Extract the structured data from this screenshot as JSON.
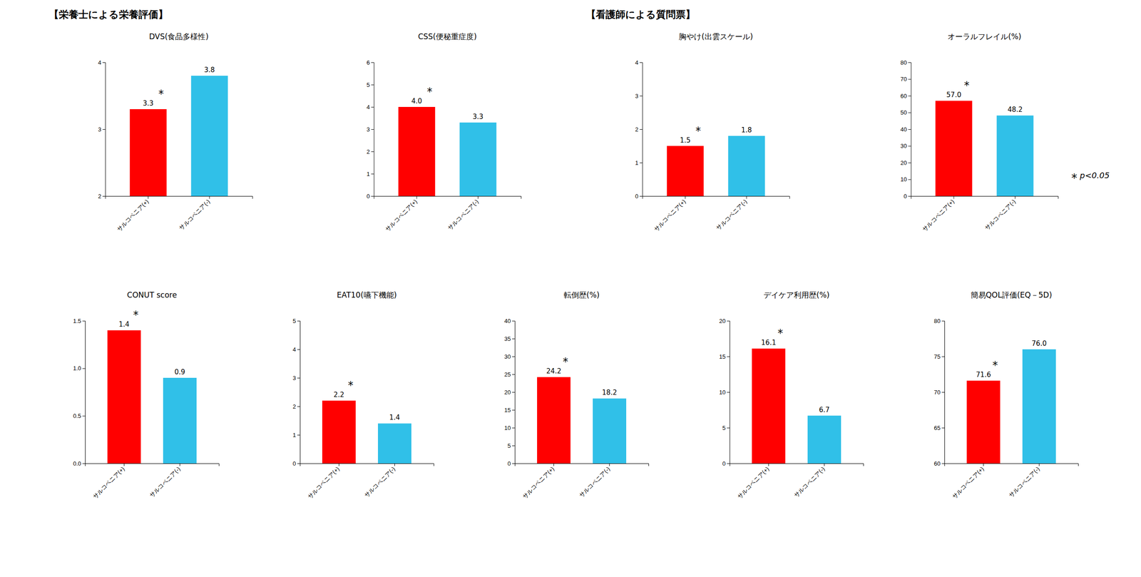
{
  "chart_data": [
    {
      "type": "bar",
      "title": "DVS(食品多様性)",
      "categories": [
        "サルコペニア(+)",
        "サルコペニア(-)"
      ],
      "values": [
        3.3,
        3.8
      ],
      "colors": [
        "#FF0000",
        "#30C0E8"
      ],
      "ylim": [
        2,
        4
      ],
      "yticks": [
        2,
        3,
        4
      ],
      "data_labels": true,
      "annotations": [
        "*"
      ]
    },
    {
      "type": "bar",
      "title": "CSS(便秘重症度)",
      "categories": [
        "サルコペニア(+)",
        "サルコペニア(-)"
      ],
      "values": [
        4.0,
        3.3
      ],
      "value_labels": [
        "4.0",
        "3.3"
      ],
      "colors": [
        "#FF0000",
        "#30C0E8"
      ],
      "ylim": [
        0,
        6
      ],
      "yticks": [
        0,
        1,
        2,
        3,
        4,
        5,
        6
      ],
      "data_labels": true,
      "annotations": [
        "*"
      ]
    },
    {
      "type": "bar",
      "title": "胸やけ(出雲スケール)",
      "categories": [
        "サルコペニア(+)",
        "サルコペニア(-)"
      ],
      "values": [
        1.5,
        1.8
      ],
      "colors": [
        "#FF0000",
        "#30C0E8"
      ],
      "ylim": [
        0,
        4
      ],
      "yticks": [
        0,
        1,
        2,
        3,
        4
      ],
      "data_labels": true,
      "annotations": [
        "*"
      ]
    },
    {
      "type": "bar",
      "title": "オーラルフレイル(%)",
      "categories": [
        "サルコペニア(+)",
        "サルコペニア(-)"
      ],
      "values": [
        57.0,
        48.2
      ],
      "value_labels": [
        "57.0",
        "48.2"
      ],
      "colors": [
        "#FF0000",
        "#30C0E8"
      ],
      "ylim": [
        0,
        80
      ],
      "yticks": [
        0,
        10,
        20,
        30,
        40,
        50,
        60,
        70,
        80
      ],
      "data_labels": true,
      "annotations": [
        "*"
      ]
    },
    {
      "type": "bar",
      "title": "CONUT score",
      "categories": [
        "サルコペニア(+)",
        "サルコペニア(-)"
      ],
      "values": [
        1.4,
        0.9
      ],
      "colors": [
        "#FF0000",
        "#30C0E8"
      ],
      "ylim": [
        0.0,
        1.5
      ],
      "yticks": [
        {
          "value": 0,
          "label": "0.0"
        },
        0.5,
        {
          "value": 1,
          "label": "1.0"
        },
        1.5
      ],
      "data_labels": true,
      "annotations": [
        "*"
      ]
    },
    {
      "type": "bar",
      "title": "EAT10(嚥下機能)",
      "categories": [
        "サルコペニア(+)",
        "サルコペニア(-)"
      ],
      "values": [
        2.2,
        1.4
      ],
      "colors": [
        "#FF0000",
        "#30C0E8"
      ],
      "ylim": [
        0,
        5
      ],
      "yticks": [
        0,
        1,
        2,
        3,
        4,
        5
      ],
      "data_labels": true,
      "annotations": [
        "*"
      ]
    },
    {
      "type": "bar",
      "title": "転倒歴(%)",
      "categories": [
        "サルコペニア(+)",
        "サルコペニア(-)"
      ],
      "values": [
        24.2,
        18.2
      ],
      "colors": [
        "#FF0000",
        "#30C0E8"
      ],
      "ylim": [
        0,
        40
      ],
      "yticks": [
        0,
        5,
        10,
        15,
        20,
        25,
        30,
        35,
        40
      ],
      "data_labels": true,
      "annotations": [
        "*"
      ]
    },
    {
      "type": "bar",
      "title": "デイケア利用歴(%)",
      "categories": [
        "サルコペニア(+)",
        "サルコペニア(-)"
      ],
      "values": [
        16.1,
        6.7
      ],
      "colors": [
        "#FF0000",
        "#30C0E8"
      ],
      "ylim": [
        0,
        20
      ],
      "yticks": [
        0,
        5,
        10,
        15,
        20
      ],
      "data_labels": true,
      "annotations": [
        "*"
      ]
    },
    {
      "type": "bar",
      "title": "簡易QOL評価(EQ－5D)",
      "categories": [
        "サルコペニア(+)",
        "サルコペニア(-)"
      ],
      "values": [
        71.6,
        76.0
      ],
      "value_labels": [
        "71.6",
        "76.0"
      ],
      "colors": [
        "#FF0000",
        "#30C0E8"
      ],
      "ylim": [
        60,
        80
      ],
      "yticks": [
        60,
        65,
        70,
        75,
        80
      ],
      "data_labels": true,
      "annotations": [
        "*"
      ]
    }
  ],
  "sections": [
    "【栄養士による栄養評価】",
    "【看護師による質問票】"
  ],
  "annotations": [
    "*",
    "p<0.05"
  ]
}
